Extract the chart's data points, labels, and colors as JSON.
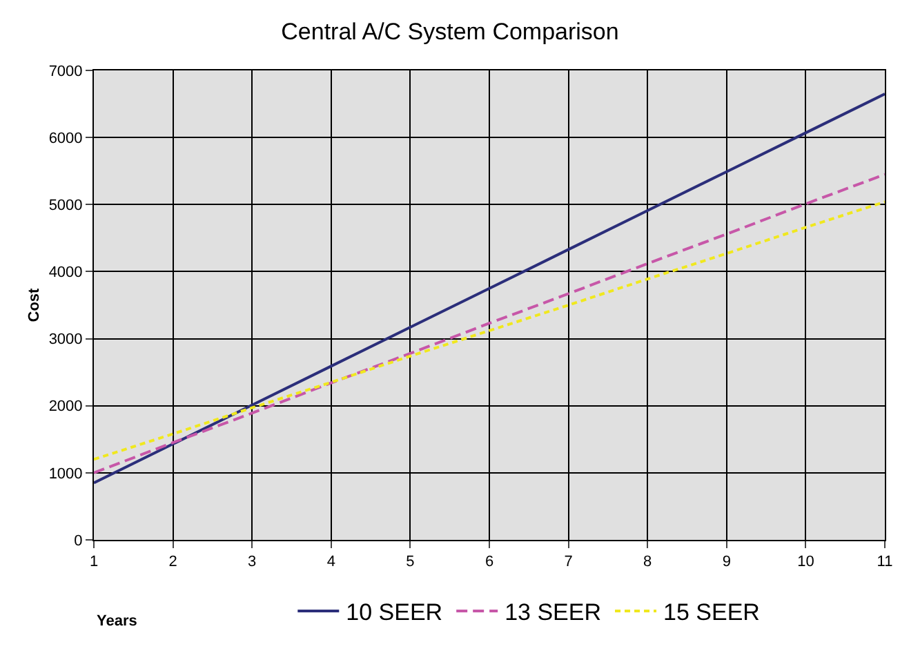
{
  "chart_data": {
    "type": "line",
    "title": "Central A/C System Comparison",
    "xlabel": "Years",
    "ylabel": "Cost",
    "x": [
      1,
      2,
      3,
      4,
      5,
      6,
      7,
      8,
      9,
      10,
      11
    ],
    "series": [
      {
        "name": "10 SEER",
        "color": "#2b2e7a",
        "line_style": "solid",
        "values": [
          850,
          1430,
          2010,
          2590,
          3170,
          3750,
          4330,
          4910,
          5490,
          6070,
          6650
        ]
      },
      {
        "name": "13 SEER",
        "color": "#c757a8",
        "line_style": "dashed",
        "values": [
          1000,
          1450,
          1890,
          2340,
          2780,
          3230,
          3670,
          4120,
          4560,
          5010,
          5450
        ]
      },
      {
        "name": "15 SEER",
        "color": "#f0e81e",
        "line_style": "dotted",
        "values": [
          1200,
          1580,
          1970,
          2350,
          2740,
          3120,
          3500,
          3890,
          4270,
          4660,
          5040
        ]
      }
    ],
    "xlim": [
      1,
      11
    ],
    "xticks": [
      1,
      2,
      3,
      4,
      5,
      6,
      7,
      8,
      9,
      10,
      11
    ],
    "ylim": [
      0,
      7000
    ],
    "yticks": [
      0,
      1000,
      2000,
      3000,
      4000,
      5000,
      6000,
      7000
    ],
    "grid": true,
    "legend": "bottom",
    "marker": "none"
  }
}
